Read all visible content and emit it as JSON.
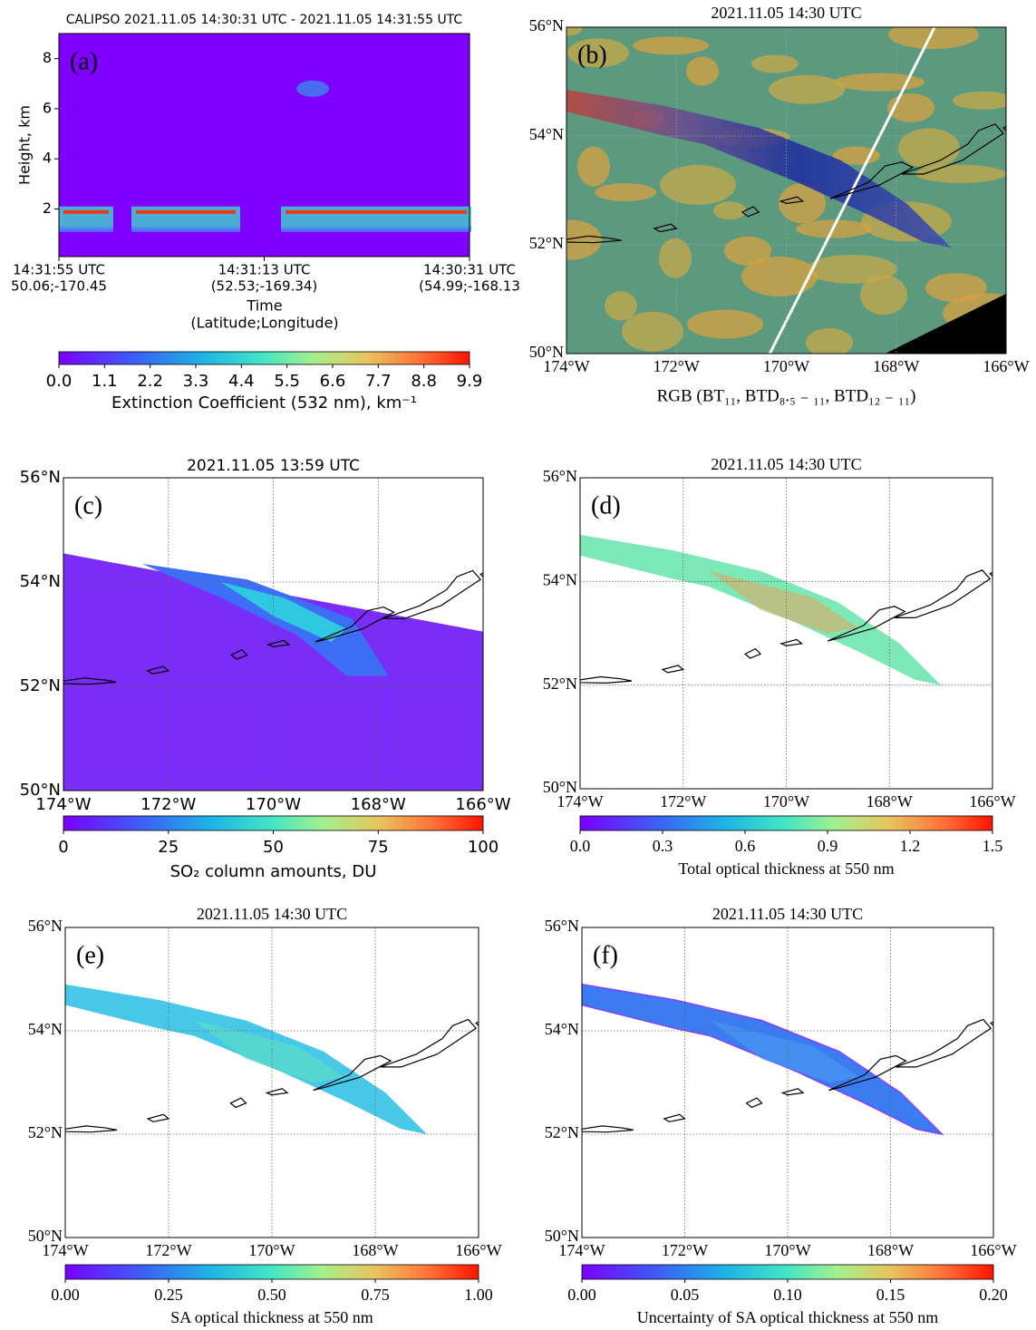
{
  "chart_data": [
    {
      "type": "heatmap",
      "panel_label": "(a)",
      "title": "CALIPSO 2021.11.05 14:30:31 UTC - 2021.11.05 14:31:55 UTC",
      "ylabel": "Height, km",
      "ylim": [
        0.1,
        9
      ],
      "yticks": [
        2,
        4,
        6,
        8
      ],
      "categories": [
        "14:31:55 UTC",
        "14:31:13 UTC",
        "14:30:31 UTC"
      ],
      "category_sublabels": [
        "50.06;-170.45",
        "(52.53;-169.34)",
        "(54.99;-168.13"
      ],
      "xlabel": "Time",
      "xsublabel": "(Latitude;Longitude)",
      "colorbar": {
        "label": "Extinction Coefficient (532 nm), km⁻¹",
        "clim": [
          0,
          9.9
        ],
        "ticks": [
          {
            "value": 0,
            "label": "0.0"
          },
          {
            "value": 1.1,
            "label": "1.1"
          },
          {
            "value": 2.2,
            "label": "2.2"
          },
          {
            "value": 3.3,
            "label": "3.3"
          },
          {
            "value": 4.4,
            "label": "4.4"
          },
          {
            "value": 5.5,
            "label": "5.5"
          },
          {
            "value": 6.6,
            "label": "6.6"
          },
          {
            "value": 7.7,
            "label": "7.7"
          },
          {
            "value": 8.8,
            "label": "8.8"
          },
          {
            "value": 9.9,
            "label": "9.9"
          }
        ]
      }
    },
    {
      "type": "rgb-map",
      "panel_label": "(b)",
      "title": "2021.11.05 14:30 UTC",
      "xlabel": "RGB (BT₁₁, BTD₈.₅ ₋ ₁₁, BTD₁₂ ₋ ₁₁)",
      "xlim": [
        -174,
        -166
      ],
      "ylim": [
        50,
        56
      ],
      "xticks": [
        {
          "value": -174,
          "label": "174°W"
        },
        {
          "value": -172,
          "label": "172°W"
        },
        {
          "value": -170,
          "label": "170°W"
        },
        {
          "value": -168,
          "label": "168°W"
        },
        {
          "value": -166,
          "label": "166°W"
        }
      ],
      "yticks": [
        {
          "value": 50,
          "label": "50°N"
        },
        {
          "value": 52,
          "label": "52°N"
        },
        {
          "value": 54,
          "label": "54°N"
        },
        {
          "value": 56,
          "label": "56°N"
        }
      ]
    },
    {
      "type": "so2-map",
      "panel_label": "(c)",
      "title": "2021.11.05 13:59 UTC",
      "xlim": [
        -174,
        -166
      ],
      "ylim": [
        50,
        56
      ],
      "xticks": [
        {
          "value": -174,
          "label": "174°W"
        },
        {
          "value": -172,
          "label": "172°W"
        },
        {
          "value": -170,
          "label": "170°W"
        },
        {
          "value": -168,
          "label": "168°W"
        },
        {
          "value": -166,
          "label": "166°W"
        }
      ],
      "yticks": [
        {
          "value": 50,
          "label": "50°N"
        },
        {
          "value": 52,
          "label": "52°N"
        },
        {
          "value": 54,
          "label": "54°N"
        },
        {
          "value": 56,
          "label": "56°N"
        }
      ],
      "colorbar": {
        "label": "SO₂ column amounts, DU",
        "clim": [
          0,
          100
        ],
        "ticks": [
          0,
          25,
          50,
          75,
          100
        ]
      }
    },
    {
      "type": "plume-map",
      "panel_label": "(d)",
      "title": "2021.11.05 14:30 UTC",
      "xlim": [
        -174,
        -166
      ],
      "ylim": [
        50,
        56
      ],
      "xticks": [
        {
          "value": -174,
          "label": "174°W"
        },
        {
          "value": -172,
          "label": "172°W"
        },
        {
          "value": -170,
          "label": "170°W"
        },
        {
          "value": -168,
          "label": "168°W"
        },
        {
          "value": -166,
          "label": "166°W"
        }
      ],
      "yticks": [
        {
          "value": 50,
          "label": "50°N"
        },
        {
          "value": 52,
          "label": "52°N"
        },
        {
          "value": 54,
          "label": "54°N"
        },
        {
          "value": 56,
          "label": "56°N"
        }
      ],
      "colorbar": {
        "label": "Total optical thickness at 550 nm",
        "clim": [
          0,
          1.5
        ],
        "ticks": [
          {
            "value": 0,
            "label": "0.0"
          },
          {
            "value": 0.3,
            "label": "0.3"
          },
          {
            "value": 0.6,
            "label": "0.6"
          },
          {
            "value": 0.9,
            "label": "0.9"
          },
          {
            "value": 1.2,
            "label": "1.2"
          },
          {
            "value": 1.5,
            "label": "1.5"
          }
        ]
      }
    },
    {
      "type": "plume-map",
      "panel_label": "(e)",
      "title": "2021.11.05 14:30 UTC",
      "xlim": [
        -174,
        -166
      ],
      "ylim": [
        50,
        56
      ],
      "xticks": [
        {
          "value": -174,
          "label": "174°W"
        },
        {
          "value": -172,
          "label": "172°W"
        },
        {
          "value": -170,
          "label": "170°W"
        },
        {
          "value": -168,
          "label": "168°W"
        },
        {
          "value": -166,
          "label": "166°W"
        }
      ],
      "yticks": [
        {
          "value": 50,
          "label": "50°N"
        },
        {
          "value": 52,
          "label": "52°N"
        },
        {
          "value": 54,
          "label": "54°N"
        },
        {
          "value": 56,
          "label": "56°N"
        }
      ],
      "colorbar": {
        "label": "SA optical thickness at 550 nm",
        "clim": [
          0,
          1
        ],
        "ticks": [
          {
            "value": 0,
            "label": "0.00"
          },
          {
            "value": 0.25,
            "label": "0.25"
          },
          {
            "value": 0.5,
            "label": "0.50"
          },
          {
            "value": 0.75,
            "label": "0.75"
          },
          {
            "value": 1,
            "label": "1.00"
          }
        ]
      }
    },
    {
      "type": "plume-map",
      "panel_label": "(f)",
      "title": "2021.11.05 14:30 UTC",
      "xlim": [
        -174,
        -166
      ],
      "ylim": [
        50,
        56
      ],
      "xticks": [
        {
          "value": -174,
          "label": "174°W"
        },
        {
          "value": -172,
          "label": "172°W"
        },
        {
          "value": -170,
          "label": "170°W"
        },
        {
          "value": -168,
          "label": "168°W"
        },
        {
          "value": -166,
          "label": "166°W"
        }
      ],
      "yticks": [
        {
          "value": 50,
          "label": "50°N"
        },
        {
          "value": 52,
          "label": "52°N"
        },
        {
          "value": 54,
          "label": "54°N"
        },
        {
          "value": 56,
          "label": "56°N"
        }
      ],
      "colorbar": {
        "label": "Uncertainty of SA optical thickness at 550 nm",
        "clim": [
          0,
          0.2
        ],
        "ticks": [
          {
            "value": 0,
            "label": "0.00"
          },
          {
            "value": 0.05,
            "label": "0.05"
          },
          {
            "value": 0.1,
            "label": "0.10"
          },
          {
            "value": 0.15,
            "label": "0.15"
          },
          {
            "value": 0.2,
            "label": "0.20"
          }
        ]
      }
    }
  ]
}
